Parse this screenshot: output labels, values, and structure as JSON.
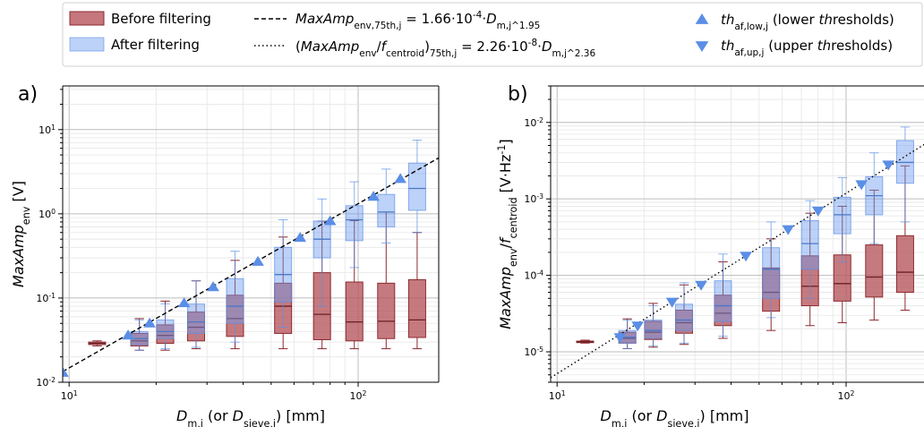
{
  "legend": {
    "before_label": "Before filtering",
    "after_label": "After filtering",
    "fit_env_label": "MaxAmp_env,75th,j = 1.66·10^-4·D_m,j^1.95",
    "fit_ratio_label": "(MaxAmp_env/f_centroid)_75th,j = 2.26·10^-8·D_m,j^2.36",
    "th_low_label": "th_af,low,j (lower thresholds)",
    "th_up_label": "th_af,up,j (upper thresholds)"
  },
  "colors": {
    "before": "#b5555b",
    "before_edge": "#8c2a30",
    "after": "#6d9cf0",
    "after_edge": "#5b8ee6",
    "marker": "#5b8ee6"
  },
  "chart_data": [
    {
      "type": "box",
      "panel_label": "a)",
      "xlabel": "D_m,j (or D_sieve,j) [mm]",
      "ylabel": "MaxAmp_env [V]",
      "xscale": "log",
      "yscale": "log",
      "xlim": [
        9.5,
        190
      ],
      "ylim": [
        0.01,
        33
      ],
      "xticks": [
        {
          "v": 10,
          "label": "10^1"
        },
        {
          "v": 100,
          "label": "10^2"
        }
      ],
      "yticks": [
        {
          "v": 0.01,
          "label": "10^-2"
        },
        {
          "v": 0.1,
          "label": "10^-1"
        },
        {
          "v": 1,
          "label": "10^0"
        },
        {
          "v": 10,
          "label": "10^1"
        }
      ],
      "grid": true,
      "boxes_before": [
        {
          "x": 12.5,
          "wlo": 0.027,
          "q1": 0.028,
          "med": 0.029,
          "q3": 0.03,
          "whi": 0.031
        },
        {
          "x": 17.5,
          "wlo": 0.024,
          "q1": 0.027,
          "med": 0.031,
          "q3": 0.038,
          "whi": 0.057
        },
        {
          "x": 21.5,
          "wlo": 0.024,
          "q1": 0.029,
          "med": 0.036,
          "q3": 0.048,
          "whi": 0.092
        },
        {
          "x": 27.5,
          "wlo": 0.025,
          "q1": 0.031,
          "med": 0.045,
          "q3": 0.068,
          "whi": 0.16
        },
        {
          "x": 37.5,
          "wlo": 0.025,
          "q1": 0.035,
          "med": 0.057,
          "q3": 0.108,
          "whi": 0.28
        },
        {
          "x": 55,
          "wlo": 0.025,
          "q1": 0.038,
          "med": 0.08,
          "q3": 0.15,
          "whi": 0.53
        },
        {
          "x": 75,
          "wlo": 0.025,
          "q1": 0.032,
          "med": 0.064,
          "q3": 0.2,
          "whi": 0.82
        },
        {
          "x": 97,
          "wlo": 0.025,
          "q1": 0.031,
          "med": 0.052,
          "q3": 0.155,
          "whi": 0.83
        },
        {
          "x": 125,
          "wlo": 0.025,
          "q1": 0.033,
          "med": 0.053,
          "q3": 0.15,
          "whi": 1.05
        },
        {
          "x": 160,
          "wlo": 0.025,
          "q1": 0.034,
          "med": 0.055,
          "q3": 0.165,
          "whi": 0.6
        }
      ],
      "boxes_after": [
        {
          "x": 17.5,
          "wlo": 0.024,
          "q1": 0.028,
          "med": 0.033,
          "q3": 0.04,
          "whi": 0.055
        },
        {
          "x": 21.5,
          "wlo": 0.025,
          "q1": 0.033,
          "med": 0.04,
          "q3": 0.055,
          "whi": 0.085
        },
        {
          "x": 27.5,
          "wlo": 0.026,
          "q1": 0.038,
          "med": 0.052,
          "q3": 0.085,
          "whi": 0.16
        },
        {
          "x": 37.5,
          "wlo": 0.03,
          "q1": 0.05,
          "med": 0.08,
          "q3": 0.17,
          "whi": 0.36
        },
        {
          "x": 55,
          "wlo": 0.045,
          "q1": 0.09,
          "med": 0.19,
          "q3": 0.4,
          "whi": 0.85
        },
        {
          "x": 75,
          "wlo": 0.08,
          "q1": 0.3,
          "med": 0.5,
          "q3": 0.82,
          "whi": 1.5
        },
        {
          "x": 97,
          "wlo": 0.23,
          "q1": 0.48,
          "med": 0.85,
          "q3": 1.25,
          "whi": 2.4
        },
        {
          "x": 125,
          "wlo": 0.45,
          "q1": 0.7,
          "med": 1.05,
          "q3": 1.7,
          "whi": 3.4
        },
        {
          "x": 160,
          "wlo": 0.6,
          "q1": 1.1,
          "med": 2.0,
          "q3": 4.0,
          "whi": 7.5
        }
      ],
      "fit_line": {
        "style": "dashed",
        "coef": 0.000166,
        "exp": 1.95
      },
      "thresholds_low": [
        {
          "x": 9.5,
          "y": 0.013
        },
        {
          "x": 16,
          "y": 0.036
        },
        {
          "x": 19,
          "y": 0.05
        },
        {
          "x": 25,
          "y": 0.087
        },
        {
          "x": 31.5,
          "y": 0.135
        },
        {
          "x": 45,
          "y": 0.27
        },
        {
          "x": 63,
          "y": 0.52
        },
        {
          "x": 80,
          "y": 0.82
        },
        {
          "x": 113,
          "y": 1.6
        },
        {
          "x": 140,
          "y": 2.6
        }
      ],
      "thresholds_up": []
    },
    {
      "type": "box",
      "panel_label": "b)",
      "xlabel": "D_m,j (or D_sieve,j) [mm]",
      "ylabel": "MaxAmp_env/f_centroid [V·Hz^-1]",
      "xscale": "log",
      "yscale": "log",
      "xlim": [
        9.5,
        190
      ],
      "ylim": [
        4e-06,
        0.03
      ],
      "xticks": [
        {
          "v": 10,
          "label": "10^1"
        },
        {
          "v": 100,
          "label": "10^2"
        }
      ],
      "yticks": [
        {
          "v": 1e-05,
          "label": "10^-5"
        },
        {
          "v": 0.0001,
          "label": "10^-4"
        },
        {
          "v": 0.001,
          "label": "10^-3"
        },
        {
          "v": 0.01,
          "label": "10^-2"
        }
      ],
      "grid": true,
      "boxes_before": [
        {
          "x": 12.5,
          "wlo": 1.3e-05,
          "q1": 1.32e-05,
          "med": 1.35e-05,
          "q3": 1.38e-05,
          "whi": 1.42e-05
        },
        {
          "x": 17.5,
          "wlo": 1.1e-05,
          "q1": 1.3e-05,
          "med": 1.5e-05,
          "q3": 1.8e-05,
          "whi": 2.7e-05
        },
        {
          "x": 21.5,
          "wlo": 1.15e-05,
          "q1": 1.45e-05,
          "med": 1.8e-05,
          "q3": 2.5e-05,
          "whi": 4.3e-05
        },
        {
          "x": 27.5,
          "wlo": 1.25e-05,
          "q1": 1.75e-05,
          "med": 2.4e-05,
          "q3": 3.5e-05,
          "whi": 7.5e-05
        },
        {
          "x": 37.5,
          "wlo": 1.5e-05,
          "q1": 2.2e-05,
          "med": 3.2e-05,
          "q3": 5.5e-05,
          "whi": 0.00015
        },
        {
          "x": 55,
          "wlo": 1.9e-05,
          "q1": 3.4e-05,
          "med": 6e-05,
          "q3": 0.000125,
          "whi": 0.0003
        },
        {
          "x": 75,
          "wlo": 2.2e-05,
          "q1": 4e-05,
          "med": 7.2e-05,
          "q3": 0.00018,
          "whi": 0.00065
        },
        {
          "x": 97,
          "wlo": 2.4e-05,
          "q1": 4.6e-05,
          "med": 7.8e-05,
          "q3": 0.000185,
          "whi": 0.0008
        },
        {
          "x": 125,
          "wlo": 2.6e-05,
          "q1": 5.2e-05,
          "med": 9.5e-05,
          "q3": 0.00025,
          "whi": 0.0013
        },
        {
          "x": 160,
          "wlo": 3.5e-05,
          "q1": 6e-05,
          "med": 0.00011,
          "q3": 0.00033,
          "whi": 0.0027
        }
      ],
      "boxes_after": [
        {
          "x": 17.5,
          "wlo": 1.1e-05,
          "q1": 1.3e-05,
          "med": 1.55e-05,
          "q3": 1.9e-05,
          "whi": 2.6e-05
        },
        {
          "x": 21.5,
          "wlo": 1.2e-05,
          "q1": 1.5e-05,
          "med": 1.9e-05,
          "q3": 2.6e-05,
          "whi": 4e-05
        },
        {
          "x": 27.5,
          "wlo": 1.3e-05,
          "q1": 1.9e-05,
          "med": 2.6e-05,
          "q3": 4.2e-05,
          "whi": 8e-05
        },
        {
          "x": 37.5,
          "wlo": 1.6e-05,
          "q1": 2.5e-05,
          "med": 4e-05,
          "q3": 8.5e-05,
          "whi": 0.00019
        },
        {
          "x": 55,
          "wlo": 2.8e-05,
          "q1": 5e-05,
          "med": 0.00012,
          "q3": 0.00023,
          "whi": 0.0005
        },
        {
          "x": 75,
          "wlo": 5e-05,
          "q1": 0.00012,
          "med": 0.00026,
          "q3": 0.00052,
          "whi": 0.00095
        },
        {
          "x": 97,
          "wlo": 0.00015,
          "q1": 0.00035,
          "med": 0.00062,
          "q3": 0.00105,
          "whi": 0.0019
        },
        {
          "x": 125,
          "wlo": 0.00026,
          "q1": 0.00062,
          "med": 0.0011,
          "q3": 0.00195,
          "whi": 0.004
        },
        {
          "x": 160,
          "wlo": 0.0005,
          "q1": 0.0016,
          "med": 0.003,
          "q3": 0.0058,
          "whi": 0.0087
        }
      ],
      "fit_line": {
        "style": "dotted",
        "coef": 2.26e-08,
        "exp": 2.36
      },
      "thresholds_low": [],
      "thresholds_up": [
        {
          "x": 16.5,
          "y": 1.55e-05
        },
        {
          "x": 19,
          "y": 2.2e-05
        },
        {
          "x": 25,
          "y": 4.5e-05
        },
        {
          "x": 31.5,
          "y": 7.5e-05
        },
        {
          "x": 45,
          "y": 0.00018
        },
        {
          "x": 63,
          "y": 0.0004
        },
        {
          "x": 80,
          "y": 0.0007
        },
        {
          "x": 113,
          "y": 0.00155
        },
        {
          "x": 140,
          "y": 0.0028
        }
      ]
    }
  ]
}
